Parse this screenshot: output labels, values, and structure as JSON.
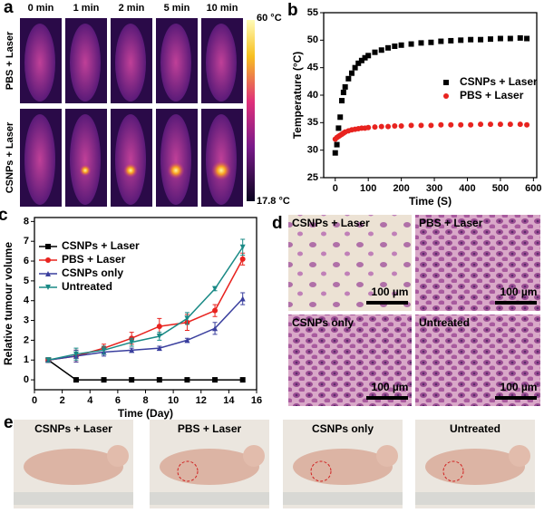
{
  "panel_a": {
    "label": "a",
    "times": [
      "0 min",
      "1 min",
      "2 min",
      "5 min",
      "10 min"
    ],
    "rows": [
      "PBS + Laser",
      "CSNPs + Laser"
    ],
    "colorbar": {
      "max": "60 °C",
      "min": "17.8 °C"
    }
  },
  "chart_data": [
    {
      "type": "scatter",
      "panel_label": "b",
      "xlabel": "Time (S)",
      "ylabel": "Temperature (°C)",
      "x": [
        0,
        5,
        10,
        15,
        20,
        25,
        30,
        40,
        50,
        60,
        70,
        80,
        90,
        100,
        120,
        140,
        160,
        180,
        200,
        230,
        260,
        290,
        320,
        350,
        380,
        410,
        440,
        470,
        500,
        530,
        560,
        580
      ],
      "series": [
        {
          "name": "CSNPs + Laser",
          "color": "#000000",
          "marker": "square",
          "values": [
            29.5,
            31,
            34,
            36,
            39,
            40.5,
            41.5,
            43,
            44,
            45,
            45.8,
            46.3,
            46.8,
            47.2,
            47.8,
            48.2,
            48.6,
            48.9,
            49.1,
            49.3,
            49.5,
            49.6,
            49.8,
            49.9,
            50,
            50.1,
            50.1,
            50.2,
            50.3,
            50.3,
            50.4,
            50.3
          ]
        },
        {
          "name": "PBS + Laser",
          "color": "#e8231f",
          "marker": "circle",
          "values": [
            32,
            32.3,
            32.5,
            32.7,
            32.9,
            33.1,
            33.3,
            33.5,
            33.7,
            33.8,
            33.9,
            34,
            34,
            34.1,
            34.2,
            34.3,
            34.3,
            34.4,
            34.4,
            34.5,
            34.5,
            34.5,
            34.6,
            34.6,
            34.6,
            34.6,
            34.7,
            34.7,
            34.7,
            34.7,
            34.7,
            34.6
          ]
        }
      ],
      "xlim": [
        -35,
        610
      ],
      "ylim": [
        25,
        55
      ],
      "xticks": [
        0,
        100,
        200,
        300,
        400,
        500,
        600
      ],
      "yticks": [
        25,
        30,
        35,
        40,
        45,
        50,
        55
      ],
      "legend": "right"
    },
    {
      "type": "line",
      "panel_label": "c",
      "xlabel": "Time (Day)",
      "ylabel": "Relative tumour volume",
      "x": [
        1,
        3,
        5,
        7,
        9,
        11,
        13,
        15
      ],
      "series": [
        {
          "name": "CSNPs + Laser",
          "color": "#000000",
          "marker": "square",
          "values": [
            1,
            0,
            0,
            0,
            0,
            0,
            0,
            0
          ]
        },
        {
          "name": "PBS + Laser",
          "color": "#e8231f",
          "marker": "circle",
          "values": [
            1,
            1.2,
            1.6,
            2.1,
            2.7,
            2.9,
            3.5,
            6.1
          ],
          "errors": [
            0.1,
            0.3,
            0.2,
            0.3,
            0.4,
            0.4,
            0.3,
            0.3
          ]
        },
        {
          "name": "CSNPs only",
          "color": "#3a3f9e",
          "marker": "triangle",
          "values": [
            1,
            1.2,
            1.4,
            1.5,
            1.6,
            2.0,
            2.6,
            4.1
          ],
          "errors": [
            0.1,
            0.3,
            0.2,
            0.1,
            0.1,
            0.1,
            0.3,
            0.3
          ]
        },
        {
          "name": "Untreated",
          "color": "#1a8a86",
          "marker": "triangle-down",
          "values": [
            1,
            1.3,
            1.5,
            1.9,
            2.2,
            3.1,
            4.6,
            6.7
          ],
          "errors": [
            0.1,
            0.3,
            0.2,
            0.2,
            0.2,
            0.3,
            0.1,
            0.4
          ]
        }
      ],
      "xlim": [
        0,
        16
      ],
      "ylim": [
        -0.5,
        8.2
      ],
      "xticks": [
        0,
        2,
        4,
        6,
        8,
        10,
        12,
        14,
        16
      ],
      "yticks": [
        0,
        1,
        2,
        3,
        4,
        5,
        6,
        7,
        8
      ],
      "legend": "upper left"
    }
  ],
  "panel_d": {
    "label": "d",
    "images": [
      {
        "title": "CSNPs + Laser",
        "scale": "100 µm"
      },
      {
        "title": "PBS + Laser",
        "scale": "100 µm"
      },
      {
        "title": "CSNPs only",
        "scale": "100 µm"
      },
      {
        "title": "Untreated",
        "scale": "100 µm"
      }
    ]
  },
  "panel_e": {
    "label": "e",
    "images": [
      {
        "title": "CSNPs + Laser"
      },
      {
        "title": "PBS + Laser"
      },
      {
        "title": "CSNPs only"
      },
      {
        "title": "Untreated"
      }
    ]
  }
}
